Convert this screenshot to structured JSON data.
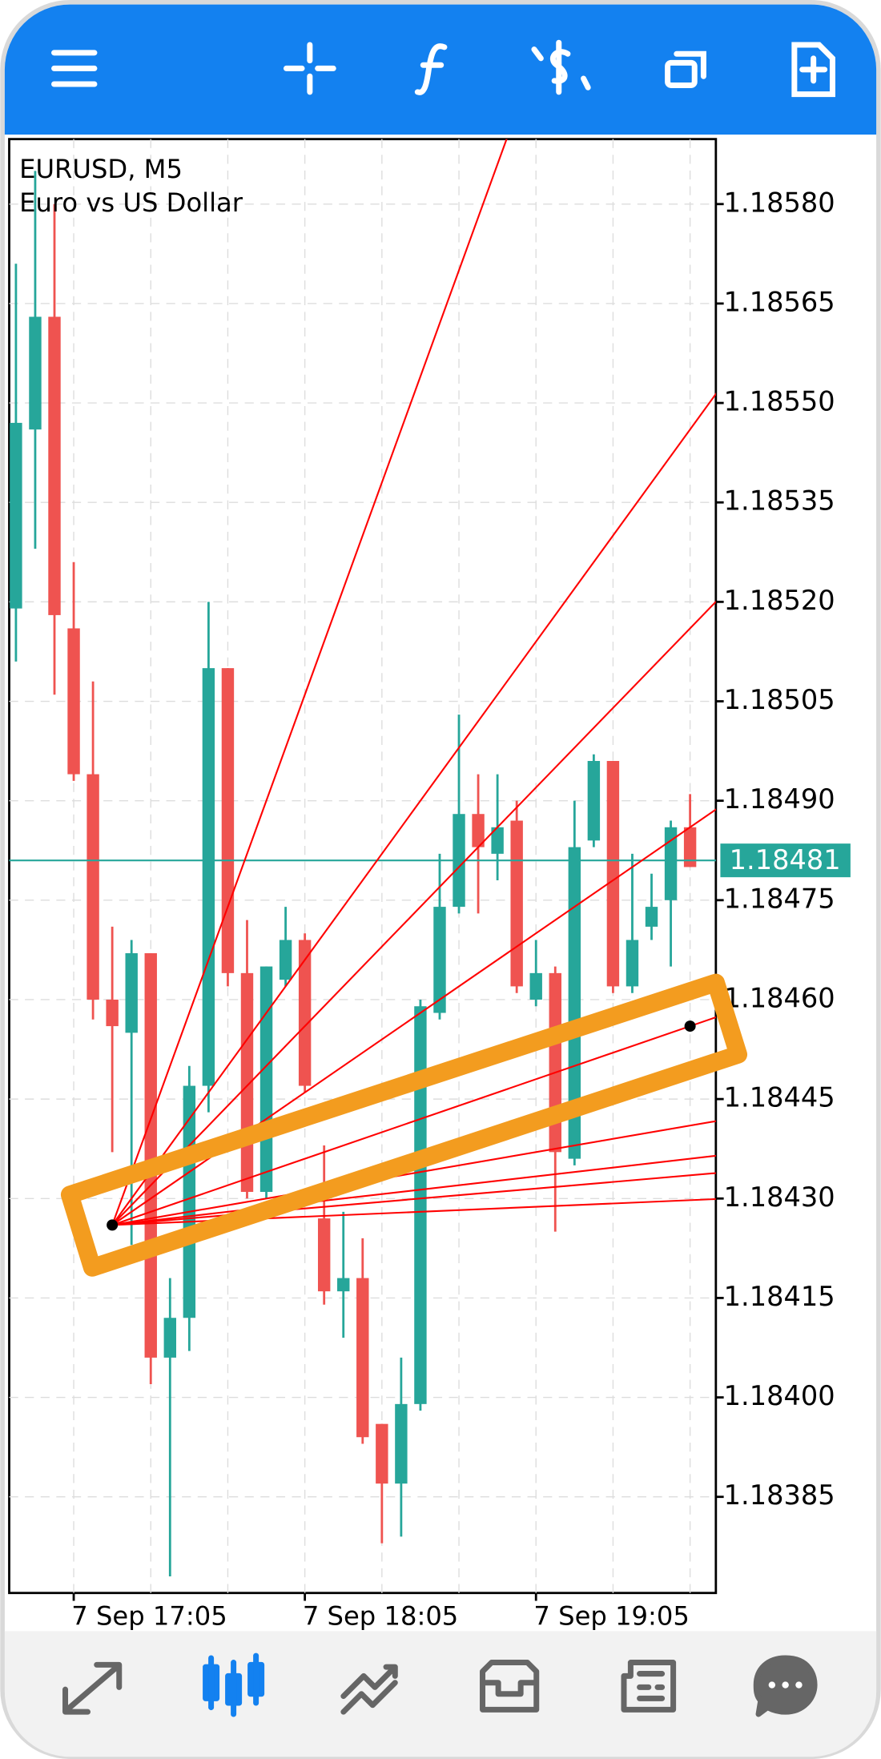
{
  "chart_data": {
    "type": "candlestick",
    "title": "EURUSD, M5",
    "subtitle": "Euro vs US Dollar",
    "categories": [
      null,
      null,
      null,
      "7 Sep 17:05",
      null,
      null,
      null,
      null,
      null,
      null,
      null,
      null,
      null,
      null,
      null,
      "7 Sep 18:05",
      null,
      null,
      null,
      null,
      null,
      null,
      null,
      null,
      null,
      null,
      null,
      "7 Sep 19:05",
      null,
      null,
      null,
      null,
      null,
      null,
      null,
      null
    ],
    "open": [
      1.18519,
      1.18546,
      1.18563,
      1.18516,
      1.18494,
      1.1846,
      1.18455,
      1.18467,
      1.18406,
      1.18412,
      1.18447,
      1.1851,
      1.18464,
      1.18431,
      1.18463,
      1.18469,
      1.18427,
      1.18416,
      1.18418,
      1.18396,
      1.18387,
      1.18399,
      1.18458,
      1.18474,
      1.18488,
      1.18482,
      1.18487,
      1.1846,
      1.18464,
      1.18436,
      1.18484,
      1.18496,
      1.18462,
      1.18471,
      1.18475,
      1.18486
    ],
    "high": [
      1.18571,
      1.18585,
      1.1858,
      1.18526,
      1.18508,
      1.18471,
      1.18469,
      1.18467,
      1.18418,
      1.1845,
      1.1852,
      1.1851,
      1.18472,
      1.18465,
      1.18474,
      1.1847,
      1.18438,
      1.18428,
      1.18424,
      1.18396,
      1.18406,
      1.1846,
      1.18482,
      1.18503,
      1.18494,
      1.18494,
      1.1849,
      1.18469,
      1.18465,
      1.1849,
      1.18497,
      1.18496,
      1.18482,
      1.18479,
      1.18487,
      1.18491
    ],
    "low": [
      1.18511,
      1.18528,
      1.18506,
      1.18493,
      1.18457,
      1.18437,
      1.18423,
      1.18402,
      1.18373,
      1.18407,
      1.18443,
      1.18462,
      1.1843,
      1.1843,
      1.18462,
      1.18446,
      1.18414,
      1.18409,
      1.18393,
      1.18378,
      1.18379,
      1.18398,
      1.18457,
      1.18473,
      1.18473,
      1.18478,
      1.18461,
      1.18459,
      1.18425,
      1.18435,
      1.18483,
      1.18461,
      1.18461,
      1.18469,
      1.18465,
      1.1848
    ],
    "close": [
      1.18547,
      1.18563,
      1.18518,
      1.18494,
      1.1846,
      1.18456,
      1.18467,
      1.18406,
      1.18412,
      1.18447,
      1.1851,
      1.18464,
      1.18431,
      1.18465,
      1.18469,
      1.18447,
      1.18416,
      1.18418,
      1.18394,
      1.18387,
      1.18399,
      1.18459,
      1.18474,
      1.18488,
      1.18483,
      1.18486,
      1.18462,
      1.18464,
      1.18437,
      1.18483,
      1.18496,
      1.18462,
      1.18469,
      1.18474,
      1.18486,
      1.1848
    ],
    "up_color": "#26a69a",
    "down_color": "#ef5350",
    "ylim": [
      1.183705,
      1.185898
    ],
    "yticks": [
      {
        "value": 1.1858,
        "label": "1.18580"
      },
      1.18565,
      {
        "value": 1.1855,
        "label": "1.18550"
      },
      1.18535,
      {
        "value": 1.1852,
        "label": "1.18520"
      },
      1.18505,
      {
        "value": 1.1849,
        "label": "1.18490"
      },
      1.18475,
      {
        "value": 1.1846,
        "label": "1.18460"
      },
      1.18445,
      {
        "value": 1.1843,
        "label": "1.18430"
      },
      1.18415,
      {
        "value": 1.184,
        "label": "1.18400"
      },
      1.18385
    ],
    "grid": true,
    "current_price": 1.18481,
    "current_price_color": "#26a69a",
    "fan": {
      "color": "#ff0000",
      "start": {
        "index": 5,
        "price": 1.18426
      },
      "end": {
        "index": 35,
        "price": 1.18456
      }
    }
  }
}
